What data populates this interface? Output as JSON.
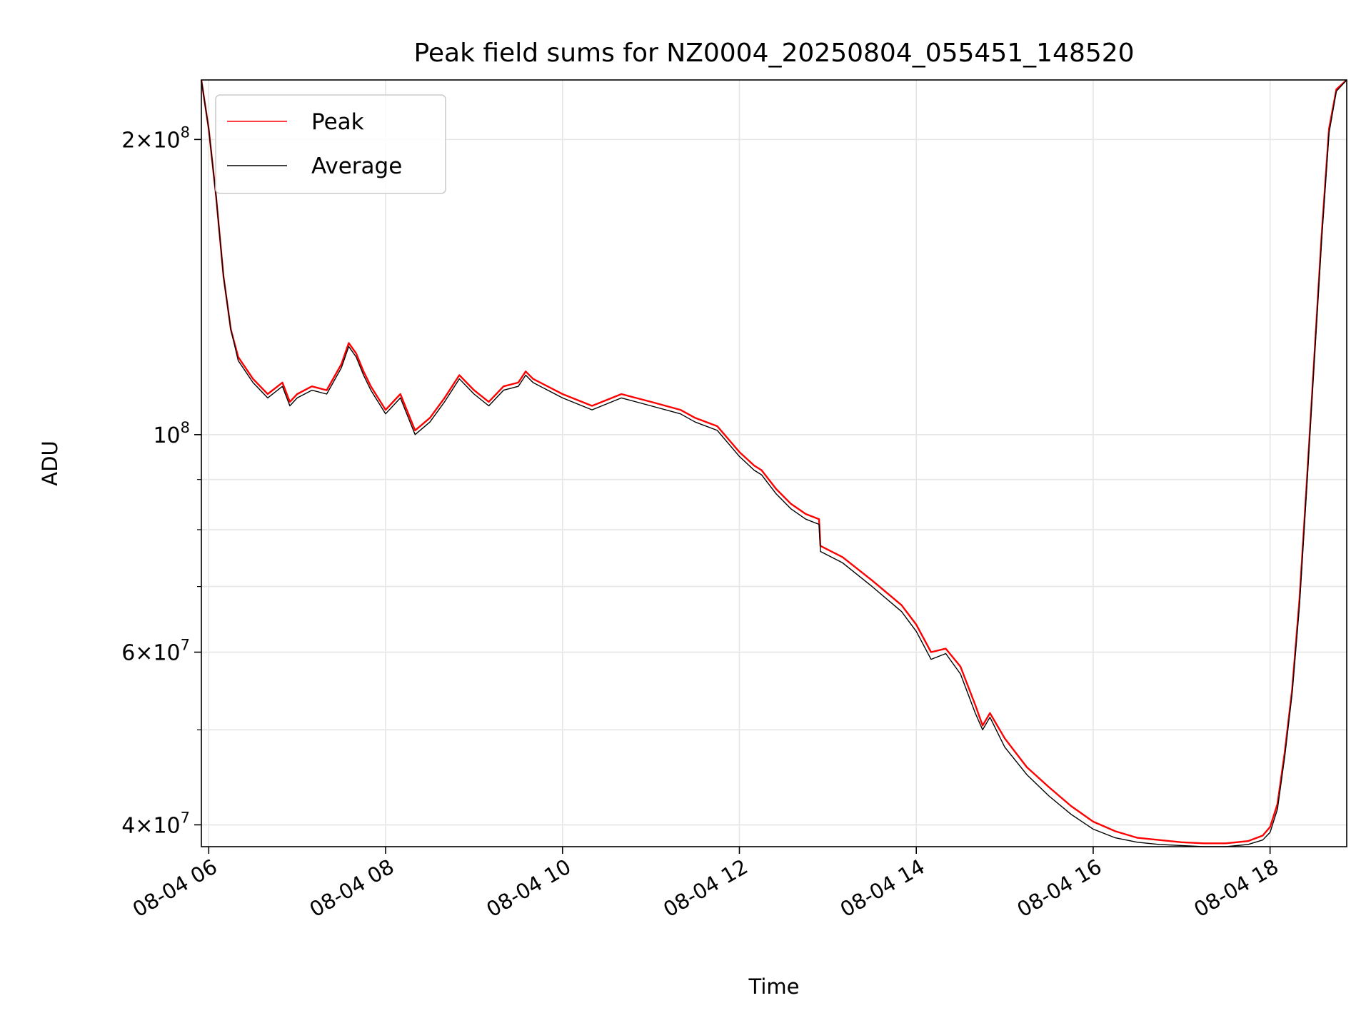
{
  "chart_data": {
    "type": "line",
    "title": "Peak field sums for NZ0004_20250804_055451_148520",
    "xlabel": "Time",
    "ylabel": "ADU",
    "xscale": "time",
    "yscale": "log",
    "grid": true,
    "legend_position": "top-left",
    "xlim": [
      "2025-08-04 05:55",
      "2025-08-04 18:52"
    ],
    "ylim": [
      38000000,
      230000000
    ],
    "x_ticks": [
      "08-04 06",
      "08-04 08",
      "08-04 10",
      "08-04 12",
      "08-04 14",
      "08-04 16",
      "08-04 18"
    ],
    "y_ticks": [
      {
        "value": 40000000,
        "base": "4",
        "exp": "7"
      },
      {
        "value": 60000000,
        "base": "6",
        "exp": "7"
      },
      {
        "value": 100000000,
        "base": "",
        "exp": "8"
      },
      {
        "value": 200000000,
        "base": "2",
        "exp": "8"
      }
    ],
    "y_minor_ticks": [
      50000000,
      70000000,
      80000000,
      90000000
    ],
    "x": [
      "2025-08-04 05:55",
      "2025-08-04 06:00",
      "2025-08-04 06:05",
      "2025-08-04 06:10",
      "2025-08-04 06:15",
      "2025-08-04 06:20",
      "2025-08-04 06:30",
      "2025-08-04 06:40",
      "2025-08-04 06:50",
      "2025-08-04 06:55",
      "2025-08-04 07:00",
      "2025-08-04 07:10",
      "2025-08-04 07:20",
      "2025-08-04 07:30",
      "2025-08-04 07:35",
      "2025-08-04 07:40",
      "2025-08-04 07:45",
      "2025-08-04 07:50",
      "2025-08-04 08:00",
      "2025-08-04 08:10",
      "2025-08-04 08:20",
      "2025-08-04 08:30",
      "2025-08-04 08:40",
      "2025-08-04 08:50",
      "2025-08-04 09:00",
      "2025-08-04 09:10",
      "2025-08-04 09:20",
      "2025-08-04 09:30",
      "2025-08-04 09:35",
      "2025-08-04 09:40",
      "2025-08-04 10:00",
      "2025-08-04 10:20",
      "2025-08-04 10:40",
      "2025-08-04 11:00",
      "2025-08-04 11:20",
      "2025-08-04 11:30",
      "2025-08-04 11:45",
      "2025-08-04 12:00",
      "2025-08-04 12:10",
      "2025-08-04 12:15",
      "2025-08-04 12:25",
      "2025-08-04 12:35",
      "2025-08-04 12:45",
      "2025-08-04 12:54",
      "2025-08-04 12:55",
      "2025-08-04 13:10",
      "2025-08-04 13:30",
      "2025-08-04 13:50",
      "2025-08-04 14:00",
      "2025-08-04 14:10",
      "2025-08-04 14:20",
      "2025-08-04 14:30",
      "2025-08-04 14:40",
      "2025-08-04 14:45",
      "2025-08-04 14:50",
      "2025-08-04 15:00",
      "2025-08-04 15:15",
      "2025-08-04 15:30",
      "2025-08-04 15:45",
      "2025-08-04 16:00",
      "2025-08-04 16:15",
      "2025-08-04 16:30",
      "2025-08-04 16:45",
      "2025-08-04 17:00",
      "2025-08-04 17:15",
      "2025-08-04 17:30",
      "2025-08-04 17:45",
      "2025-08-04 17:55",
      "2025-08-04 18:00",
      "2025-08-04 18:05",
      "2025-08-04 18:10",
      "2025-08-04 18:15",
      "2025-08-04 18:20",
      "2025-08-04 18:25",
      "2025-08-04 18:30",
      "2025-08-04 18:35",
      "2025-08-04 18:40",
      "2025-08-04 18:45",
      "2025-08-04 18:52"
    ],
    "series": [
      {
        "name": "Peak",
        "color": "#ff0000",
        "values": [
          230000000,
          205000000,
          175000000,
          145000000,
          128000000,
          120000000,
          114000000,
          110000000,
          113000000,
          108000000,
          110000000,
          112000000,
          111000000,
          118000000,
          124000000,
          121000000,
          116000000,
          112000000,
          106000000,
          110000000,
          101000000,
          104000000,
          109000000,
          115000000,
          111000000,
          108000000,
          112000000,
          113000000,
          116000000,
          114000000,
          110000000,
          107000000,
          110000000,
          108000000,
          106000000,
          104000000,
          102000000,
          96000000,
          93000000,
          92000000,
          88000000,
          85000000,
          83000000,
          82000000,
          77000000,
          75000000,
          71000000,
          67000000,
          64000000,
          60000000,
          60500000,
          58000000,
          53000000,
          50500000,
          52000000,
          49000000,
          45800000,
          43700000,
          41800000,
          40300000,
          39400000,
          38800000,
          38600000,
          38400000,
          38300000,
          38300000,
          38500000,
          39000000,
          39800000,
          42000000,
          47500000,
          55000000,
          68000000,
          90000000,
          120000000,
          160000000,
          205000000,
          225000000,
          230000000
        ]
      },
      {
        "name": "Average",
        "color": "#000000",
        "values": [
          230000000,
          205000000,
          175000000,
          145000000,
          128000000,
          119000000,
          113000000,
          109000000,
          112000000,
          107000000,
          109000000,
          111000000,
          110000000,
          117000000,
          123000000,
          120000000,
          115000000,
          111000000,
          105000000,
          109000000,
          100000000,
          103000000,
          108000000,
          114000000,
          110000000,
          107000000,
          111000000,
          112000000,
          115000000,
          113000000,
          109000000,
          106000000,
          109000000,
          107000000,
          105000000,
          103000000,
          101000000,
          95000000,
          92000000,
          91000000,
          87000000,
          84000000,
          82000000,
          81000000,
          76000000,
          74000000,
          70000000,
          66000000,
          63000000,
          59000000,
          59800000,
          57000000,
          52000000,
          50000000,
          51500000,
          48000000,
          45000000,
          42800000,
          41000000,
          39600000,
          38800000,
          38400000,
          38200000,
          38100000,
          38000000,
          38000000,
          38200000,
          38600000,
          39300000,
          41500000,
          47000000,
          54500000,
          67000000,
          89000000,
          119000000,
          158000000,
          203000000,
          224000000,
          230000000
        ]
      }
    ]
  }
}
